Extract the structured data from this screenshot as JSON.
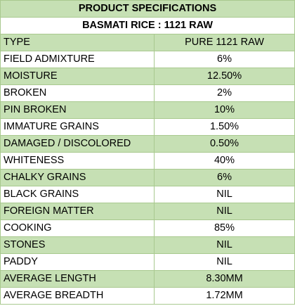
{
  "colors": {
    "band_green": "#c6e0b4",
    "band_white": "#ffffff",
    "grid_line": "#a9c98f"
  },
  "sheet": {
    "title": "PRODUCT SPECIFICATIONS",
    "subtitle": "BASMATI RICE : 1121 RAW",
    "rows": [
      {
        "parameter": "TYPE",
        "value": "PURE 1121 RAW"
      },
      {
        "parameter": "FIELD ADMIXTURE",
        "value": "6%"
      },
      {
        "parameter": "MOISTURE",
        "value": "12.50%"
      },
      {
        "parameter": "BROKEN",
        "value": "2%"
      },
      {
        "parameter": "PIN BROKEN",
        "value": "10%"
      },
      {
        "parameter": "IMMATURE GRAINS",
        "value": "1.50%"
      },
      {
        "parameter": "DAMAGED / DISCOLORED",
        "value": "0.50%"
      },
      {
        "parameter": "WHITENESS",
        "value": "40%"
      },
      {
        "parameter": "CHALKY GRAINS",
        "value": "6%"
      },
      {
        "parameter": "BLACK GRAINS",
        "value": "NIL"
      },
      {
        "parameter": "FOREIGN MATTER",
        "value": "NIL"
      },
      {
        "parameter": "COOKING",
        "value": "85%"
      },
      {
        "parameter": "STONES",
        "value": "NIL"
      },
      {
        "parameter": "PADDY",
        "value": "NIL"
      },
      {
        "parameter": "AVERAGE LENGTH",
        "value": "8.30MM"
      },
      {
        "parameter": "AVERAGE BREADTH",
        "value": "1.72MM"
      }
    ]
  }
}
